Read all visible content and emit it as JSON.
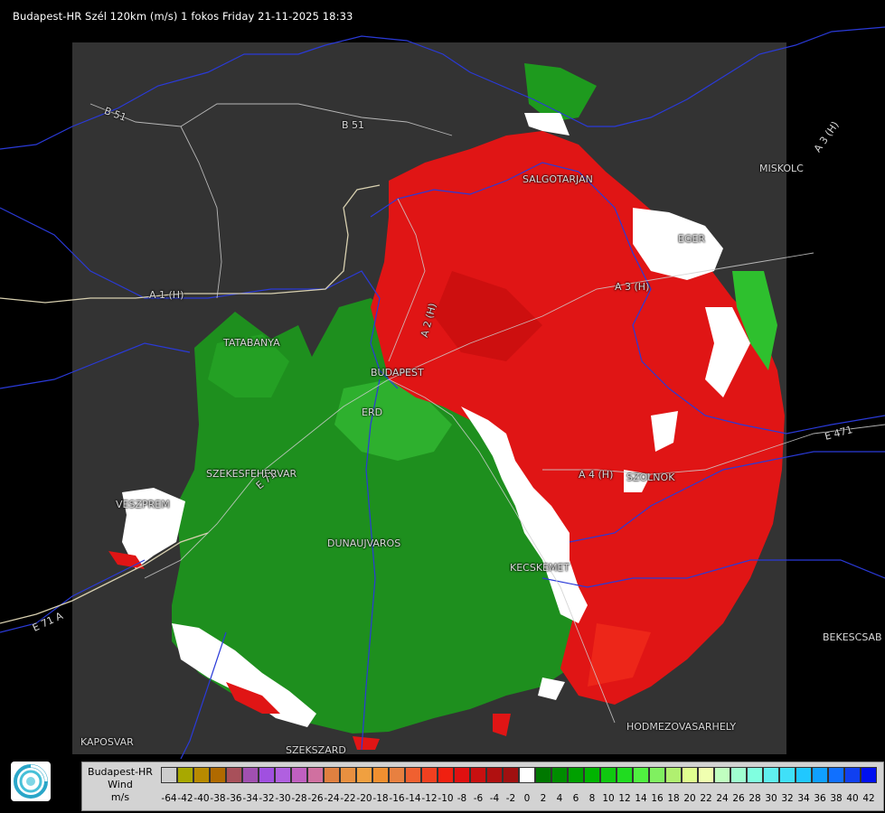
{
  "header": {
    "title": "Budapest-HR Szél 120km (m/s) 1 fokos Friday 21-11-2025 18:33"
  },
  "map": {
    "background_color": "#000000",
    "coverage_color": "#333333",
    "approaching_color": "#1e9a1e",
    "receding_color": "#e01010",
    "noise_color": "#ffffff",
    "labels": [
      {
        "key": "salgotarjan",
        "text": "SALGOTARJAN"
      },
      {
        "key": "miskolc",
        "text": "MISKOLC"
      },
      {
        "key": "eger",
        "text": "EGER"
      },
      {
        "key": "tatabanya",
        "text": "TATABANYA"
      },
      {
        "key": "budapest",
        "text": "BUDAPEST"
      },
      {
        "key": "erd",
        "text": "ERD"
      },
      {
        "key": "szekesfehervar",
        "text": "SZEKESFEHERVAR"
      },
      {
        "key": "veszprem",
        "text": "VESZPREM"
      },
      {
        "key": "dunaujvaros",
        "text": "DUNAUJVAROS"
      },
      {
        "key": "kecskemet",
        "text": "KECSKEMET"
      },
      {
        "key": "szolnok",
        "text": "SZOLNOK"
      },
      {
        "key": "bekescsaba",
        "text": "BEKESCSAB"
      },
      {
        "key": "hodmezovasarhely",
        "text": "HODMEZOVASARHELY"
      },
      {
        "key": "kaposvar",
        "text": "KAPOSVAR"
      },
      {
        "key": "szekszard",
        "text": "SZEKSZARD"
      },
      {
        "key": "road_b51_a",
        "text": "B 51"
      },
      {
        "key": "road_b51_b",
        "text": "B 51"
      },
      {
        "key": "road_a3_a",
        "text": "A 3 (H)"
      },
      {
        "key": "road_a3_b",
        "text": "A 3 (H)"
      },
      {
        "key": "road_a2",
        "text": "A 2 (H)"
      },
      {
        "key": "road_a1",
        "text": "A 1 (H)"
      },
      {
        "key": "road_a4",
        "text": "A 4 (H)"
      },
      {
        "key": "road_e471",
        "text": "E 471"
      },
      {
        "key": "road_e71",
        "text": "E 71"
      },
      {
        "key": "road_e71_b",
        "text": "E 71 A"
      }
    ]
  },
  "legend": {
    "title_line1": "Budapest-HR",
    "title_line2": "Wind",
    "title_line3": "m/s",
    "labels": [
      "-64",
      "-42",
      "-40",
      "-38",
      "-36",
      "-34",
      "-32",
      "-30",
      "-28",
      "-26",
      "-24",
      "-22",
      "-20",
      "-18",
      "-16",
      "-14",
      "-12",
      "-10",
      "-8",
      "-6",
      "-4",
      "-2",
      "0",
      "2",
      "4",
      "6",
      "8",
      "10",
      "12",
      "14",
      "16",
      "18",
      "20",
      "22",
      "24",
      "26",
      "28",
      "30",
      "32",
      "34",
      "36",
      "38",
      "40",
      "42"
    ],
    "colors": [
      "#cdcdcd",
      "#a8a800",
      "#b88a00",
      "#b06a00",
      "#a8505a",
      "#a050b0",
      "#a050e0",
      "#b060e0",
      "#c060c0",
      "#d070a0",
      "#e08040",
      "#e89040",
      "#f0a040",
      "#f09030",
      "#e88040",
      "#f06030",
      "#f04020",
      "#f02010",
      "#e01010",
      "#c81010",
      "#b01010",
      "#a01010",
      "#ffffff",
      "#007800",
      "#008c00",
      "#00a000",
      "#00b400",
      "#10c810",
      "#20dc20",
      "#50f040",
      "#80f060",
      "#b0f070",
      "#e0ff90",
      "#f0ffb0",
      "#c0ffc0",
      "#a0ffd0",
      "#80ffe0",
      "#60f0f0",
      "#40e0f8",
      "#20c8ff",
      "#10a0ff",
      "#1070ff",
      "#1040f0",
      "#0010f0"
    ]
  }
}
